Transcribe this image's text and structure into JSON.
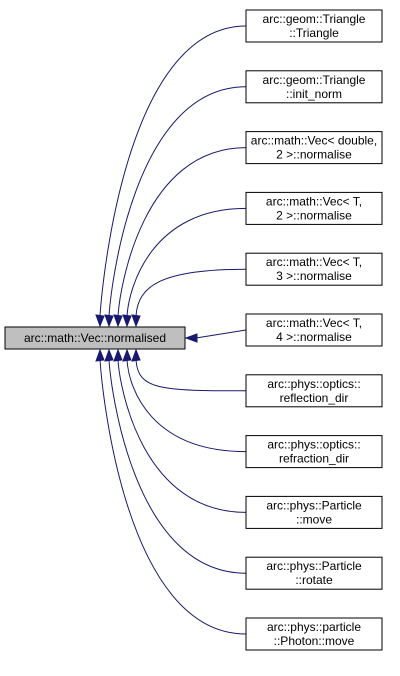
{
  "colors": {
    "edge": "#191970",
    "focus_fill": "#bfbfbf",
    "node_fill": "#ffffff",
    "node_border": "#000000"
  },
  "graph": {
    "focus": {
      "label": "arc::math::Vec::normalised"
    },
    "callers": [
      {
        "line1": "arc::geom::Triangle",
        "line2": "::Triangle"
      },
      {
        "line1": "arc::geom::Triangle",
        "line2": "::init_norm"
      },
      {
        "line1": "arc::math::Vec< double,",
        "line2": "2 >::normalise"
      },
      {
        "line1": "arc::math::Vec< T,",
        "line2": "2 >::normalise"
      },
      {
        "line1": "arc::math::Vec< T,",
        "line2": "3 >::normalise"
      },
      {
        "line1": "arc::math::Vec< T,",
        "line2": "4 >::normalise"
      },
      {
        "line1": "arc::phys::optics::",
        "line2": "reflection_dir"
      },
      {
        "line1": "arc::phys::optics::",
        "line2": "refraction_dir"
      },
      {
        "line1": "arc::phys::Particle",
        "line2": "::move"
      },
      {
        "line1": "arc::phys::Particle",
        "line2": "::rotate"
      },
      {
        "line1": "arc::phys::particle",
        "line2": "::Photon::move"
      }
    ]
  }
}
